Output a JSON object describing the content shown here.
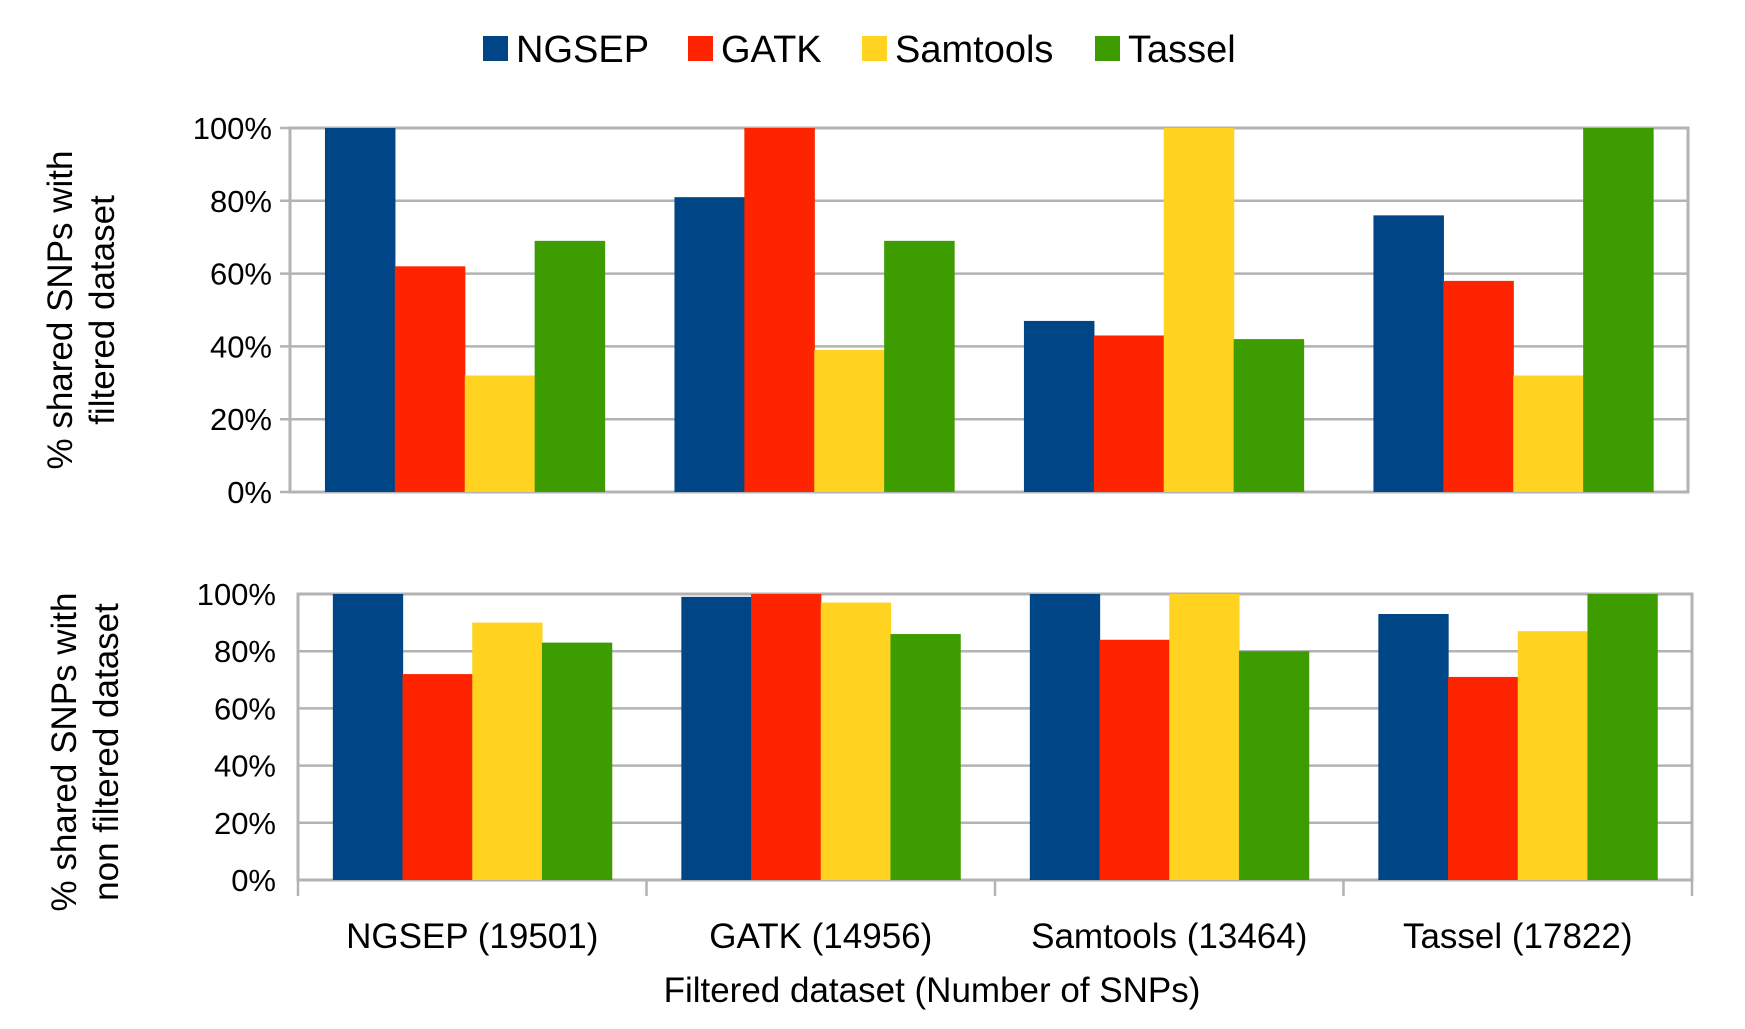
{
  "legend": {
    "entries": [
      {
        "name": "NGSEP",
        "color": "#004586"
      },
      {
        "name": "GATK",
        "color": "#ff2400"
      },
      {
        "name": "Samtools",
        "color": "#ffd320"
      },
      {
        "name": "Tassel",
        "color": "#3c9c00"
      }
    ]
  },
  "xaxis": {
    "title": "Filtered dataset (Number of SNPs)"
  },
  "chart_data": [
    {
      "type": "bar",
      "ylabel": "% shared SNPs with\nfiltered dataset",
      "ylim": [
        0,
        100
      ],
      "yticks": [
        "0%",
        "20%",
        "40%",
        "60%",
        "80%",
        "100%"
      ],
      "grid": true,
      "legend_position": "top",
      "categories": [
        "NGSEP (19501)",
        "GATK (14956)",
        "Samtools (13464)",
        "Tassel (17822)"
      ],
      "series": [
        {
          "name": "NGSEP",
          "color": "#004586",
          "values": [
            100,
            81,
            47,
            76
          ]
        },
        {
          "name": "GATK",
          "color": "#ff2400",
          "values": [
            62,
            100,
            43,
            58
          ]
        },
        {
          "name": "Samtools",
          "color": "#ffd320",
          "values": [
            32,
            39,
            100,
            32
          ]
        },
        {
          "name": "Tassel",
          "color": "#3c9c00",
          "values": [
            69,
            69,
            42,
            100
          ]
        }
      ]
    },
    {
      "type": "bar",
      "ylabel": "% shared SNPs with\nnon filtered dataset",
      "xlabel": "Filtered dataset (Number of SNPs)",
      "ylim": [
        0,
        100
      ],
      "yticks": [
        "0%",
        "20%",
        "40%",
        "60%",
        "80%",
        "100%"
      ],
      "grid": true,
      "categories": [
        "NGSEP (19501)",
        "GATK (14956)",
        "Samtools (13464)",
        "Tassel (17822)"
      ],
      "series": [
        {
          "name": "NGSEP",
          "color": "#004586",
          "values": [
            100,
            99,
            100,
            93
          ]
        },
        {
          "name": "GATK",
          "color": "#ff2400",
          "values": [
            72,
            100,
            84,
            71
          ]
        },
        {
          "name": "Samtools",
          "color": "#ffd320",
          "values": [
            90,
            97,
            100,
            87
          ]
        },
        {
          "name": "Tassel",
          "color": "#3c9c00",
          "values": [
            83,
            86,
            80,
            100
          ]
        }
      ]
    }
  ]
}
